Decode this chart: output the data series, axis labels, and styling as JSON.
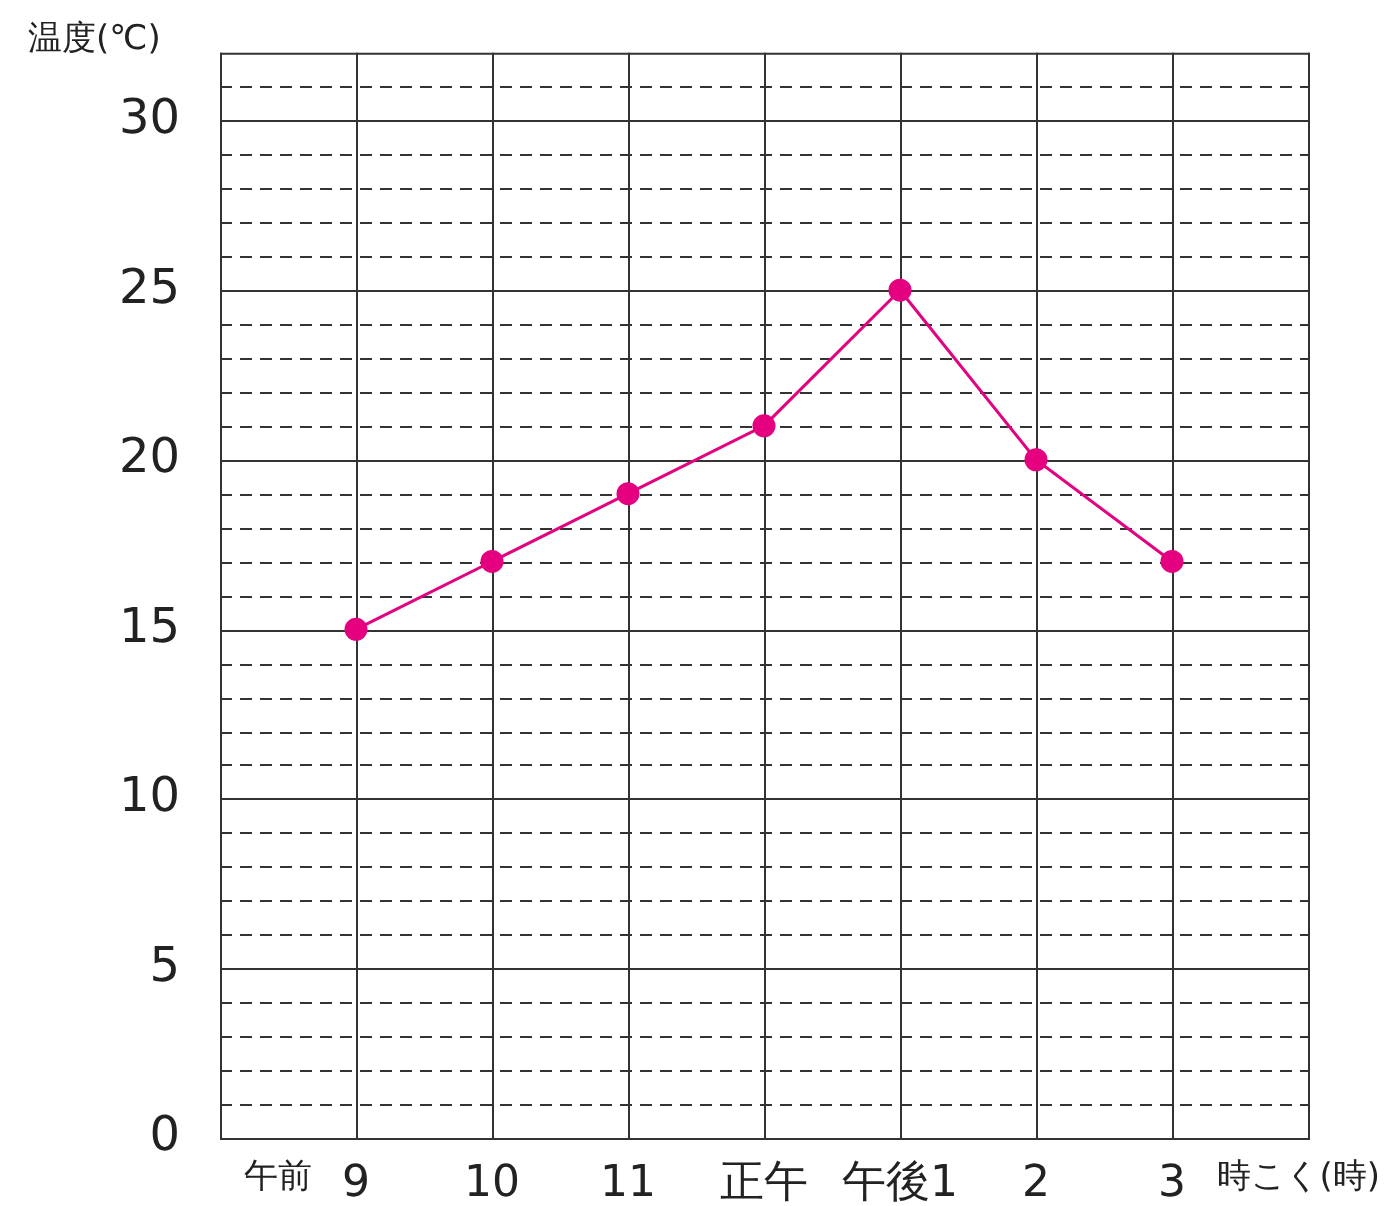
{
  "chart_data": {
    "type": "line",
    "xlabel": "時こく(時)",
    "ylabel": "温度(℃)",
    "categories": [
      "9",
      "10",
      "11",
      "正午",
      "午後1",
      "2",
      "3"
    ],
    "series": [
      {
        "color": "#e4007f",
        "values": [
          15,
          17,
          19,
          21,
          25,
          20,
          17
        ]
      }
    ],
    "ylim": [
      0,
      32
    ],
    "yticks": [
      0,
      {
        "value": 1,
        "label": null
      },
      {
        "value": 2,
        "label": null
      },
      {
        "value": 3,
        "label": null
      },
      {
        "value": 4,
        "label": null
      },
      5,
      {
        "value": 6,
        "label": null
      },
      {
        "value": 7,
        "label": null
      },
      {
        "value": 8,
        "label": null
      },
      {
        "value": 9,
        "label": null
      },
      10,
      {
        "value": 11,
        "label": null
      },
      {
        "value": 12,
        "label": null
      },
      {
        "value": 13,
        "label": null
      },
      {
        "value": 14,
        "label": null
      },
      15,
      {
        "value": 16,
        "label": null
      },
      {
        "value": 17,
        "label": null
      },
      {
        "value": 18,
        "label": null
      },
      {
        "value": 19,
        "label": null
      },
      20,
      {
        "value": 21,
        "label": null
      },
      {
        "value": 22,
        "label": null
      },
      {
        "value": 23,
        "label": null
      },
      {
        "value": 24,
        "label": null
      },
      25,
      {
        "value": 26,
        "label": null
      },
      {
        "value": 27,
        "label": null
      },
      {
        "value": 28,
        "label": null
      },
      {
        "value": 29,
        "label": null
      },
      30,
      {
        "value": 31,
        "label": null
      }
    ],
    "annotations": [
      "午前"
    ],
    "grid": true,
    "legend": false,
    "marker": "circle",
    "line_style": "solid"
  }
}
